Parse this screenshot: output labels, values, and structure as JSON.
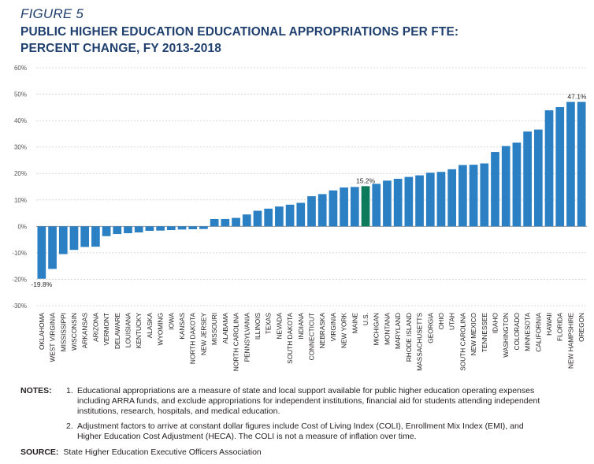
{
  "figure_label": "FIGURE 5",
  "title_line1": "PUBLIC HIGHER EDUCATION EDUCATIONAL APPROPRIATIONS PER FTE:",
  "title_line2": "PERCENT CHANGE, FY 2013-2018",
  "notes": {
    "heading": "NOTES:",
    "items": [
      {
        "num": "1.",
        "text": "Educational appropriations are a measure of state and local support available for public higher education operating expenses including ARRA funds, and exclude appropriations for independent institutions, financial aid for students attending independent institutions, research, hospitals, and medical education."
      },
      {
        "num": "2.",
        "text": "Adjustment factors to arrive at constant dollar figures include Cost of Living Index (COLI), Enrollment Mix Index (EMI), and Higher Education Cost Adjustment (HECA). The COLI is not a measure of inflation over time."
      }
    ]
  },
  "source": {
    "heading": "SOURCE:",
    "text": "State Higher Education Executive Officers Association"
  },
  "chart_data": {
    "type": "bar",
    "ylim": [
      -30,
      60
    ],
    "yticks": [
      -30,
      -20,
      -10,
      0,
      10,
      20,
      30,
      40,
      50,
      60
    ],
    "ytick_labels": [
      "-30%",
      "-20%",
      "-10%",
      "0%",
      "10%",
      "20%",
      "30%",
      "40%",
      "50%",
      "60%"
    ],
    "colors": {
      "bar": "#2b7fc3",
      "highlight": "#0e7a5c",
      "grid": "#cccccc"
    },
    "highlight_category": "U.S.",
    "categories": [
      "OKLAHOMA",
      "WEST VIRGINIA",
      "MISSISSIPPI",
      "WISCONSIN",
      "ARKANSAS",
      "ARIZONA",
      "VERMONT",
      "DELAWARE",
      "LOUISIANA",
      "KENTUCKY",
      "ALASKA",
      "WYOMING",
      "IOWA",
      "KANSAS",
      "NORTH DAKOTA",
      "NEW JERSEY",
      "MISSOURI",
      "ALABAMA",
      "NORTH CAROLINA",
      "PENNSYLVANIA",
      "ILLINOIS",
      "TEXAS",
      "NEVADA",
      "SOUTH DAKOTA",
      "INDIANA",
      "CONNECTICUT",
      "NEBRASKA",
      "VIRGINIA",
      "NEW YORK",
      "MAINE",
      "U.S.",
      "MICHIGAN",
      "MONTANA",
      "MARYLAND",
      "RHODE ISLAND",
      "MASSACHUSETTS",
      "GEORGIA",
      "OHIO",
      "UTAH",
      "SOUTH CAROLINA",
      "NEW MEXICO",
      "TENNESSEE",
      "IDAHO",
      "WASHINGTON",
      "COLORADO",
      "MINNESOTA",
      "CALIFORNIA",
      "HAWAII",
      "FLORIDA",
      "NEW HAMPSHIRE",
      "OREGON"
    ],
    "values": [
      -19.8,
      -16.1,
      -10.5,
      -8.9,
      -7.8,
      -7.7,
      -3.7,
      -2.9,
      -2.6,
      -2.3,
      -1.7,
      -1.6,
      -1.4,
      -1.2,
      -1.1,
      -1.0,
      2.8,
      2.8,
      3.2,
      4.5,
      5.9,
      6.7,
      7.5,
      8.2,
      8.9,
      11.4,
      12.2,
      13.6,
      14.7,
      14.9,
      15.2,
      16.1,
      17.3,
      18.0,
      18.7,
      19.3,
      20.3,
      20.6,
      21.6,
      23.2,
      23.3,
      23.8,
      28.1,
      30.4,
      31.7,
      35.9,
      36.6,
      43.9,
      45.1,
      47.1,
      47.1
    ],
    "data_labels": [
      {
        "category": "OKLAHOMA",
        "text": "-19.8%"
      },
      {
        "category": "U.S.",
        "text": "15.2%"
      },
      {
        "category": "OREGON",
        "text": "47.1%"
      }
    ]
  }
}
